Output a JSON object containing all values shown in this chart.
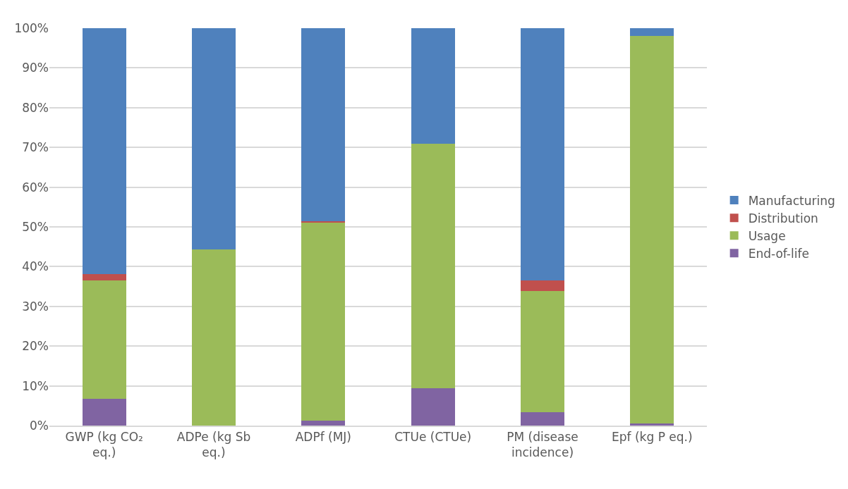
{
  "chart_data": {
    "type": "bar",
    "stacked": true,
    "categories": [
      "GWP (kg CO₂ eq.)",
      "ADPe (kg Sb eq.)",
      "ADPf (MJ)",
      "CTUe (CTUe)",
      "PM (disease incidence)",
      "Epf (kg P eq.)"
    ],
    "series": [
      {
        "name": "End-of-life",
        "color": "#8064a2",
        "values": [
          6.8,
          0,
          1.2,
          9.4,
          3.4,
          0.6
        ]
      },
      {
        "name": "Usage",
        "color": "#9bbb59",
        "values": [
          29.8,
          44.4,
          49.8,
          61.6,
          30.4,
          97.5
        ]
      },
      {
        "name": "Distribution",
        "color": "#c0504d",
        "values": [
          1.6,
          0,
          0.4,
          0,
          2.8,
          0
        ]
      },
      {
        "name": "Manufacturing",
        "color": "#4f81bd",
        "values": [
          61.8,
          55.6,
          48.6,
          29.0,
          63.4,
          1.9
        ]
      }
    ],
    "ylim": [
      0,
      100
    ],
    "yticks": [
      {
        "value": 0,
        "label": "0%"
      },
      {
        "value": 10,
        "label": "10%"
      },
      {
        "value": 20,
        "label": "20%"
      },
      {
        "value": 30,
        "label": "30%"
      },
      {
        "value": 40,
        "label": "40%"
      },
      {
        "value": 50,
        "label": "50%"
      },
      {
        "value": 60,
        "label": "60%"
      },
      {
        "value": 70,
        "label": "70%"
      },
      {
        "value": 80,
        "label": "80%"
      },
      {
        "value": 90,
        "label": "90%"
      },
      {
        "value": 100,
        "label": "100%"
      }
    ],
    "grid": "y",
    "legend": "right"
  }
}
